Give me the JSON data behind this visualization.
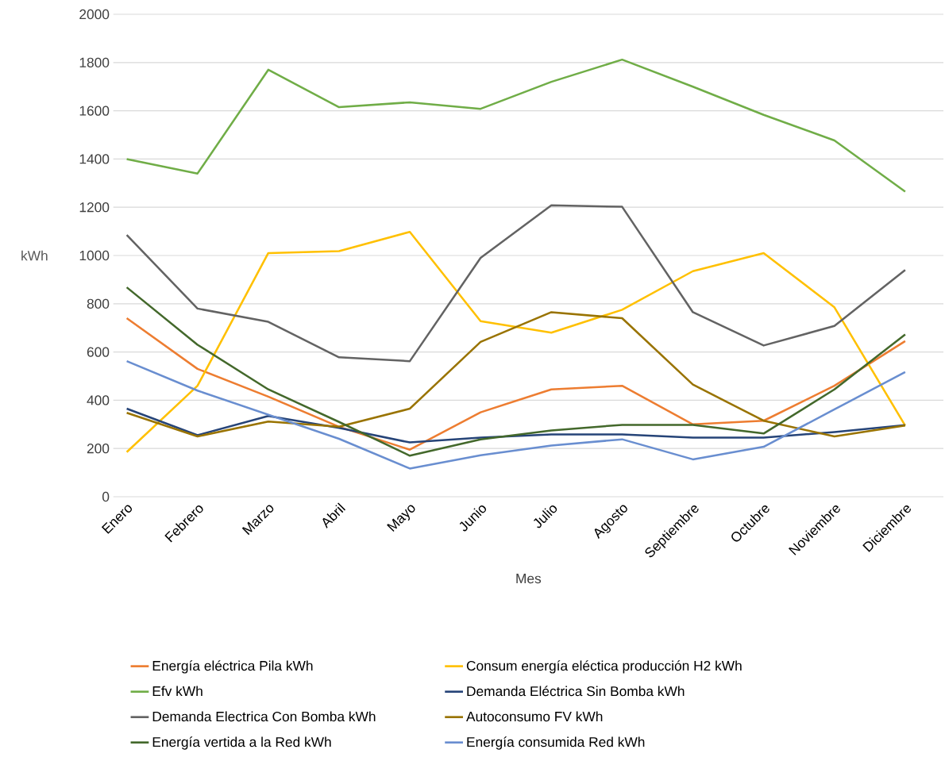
{
  "chart_data": {
    "type": "line",
    "xlabel": "Mes",
    "ylabel": "kWh",
    "categories": [
      "Enero",
      "Febrero",
      "Marzo",
      "Abril",
      "Mayo",
      "Junio",
      "Julio",
      "Agosto",
      "Septiembre",
      "Octubre",
      "Noviembre",
      "Diciembre"
    ],
    "series": [
      {
        "name": "Energía eléctrica Pila  kWh",
        "color": "#ed7d31",
        "values": [
          740,
          530,
          415,
          290,
          195,
          350,
          445,
          460,
          300,
          315,
          460,
          645
        ]
      },
      {
        "name": "Consum energía eléctica producción H2 kWh",
        "color": "#ffc000",
        "values": [
          185,
          460,
          1010,
          1018,
          1098,
          728,
          680,
          775,
          935,
          1010,
          785,
          295
        ]
      },
      {
        "name": "Efv kWh",
        "color": "#70ad47",
        "values": [
          1400,
          1340,
          1770,
          1615,
          1635,
          1608,
          1720,
          1812,
          1700,
          1583,
          1477,
          1265
        ]
      },
      {
        "name": "Demanda Eléctrica Sin Bomba kWh",
        "color": "#264478",
        "values": [
          365,
          255,
          335,
          285,
          225,
          245,
          258,
          258,
          245,
          245,
          268,
          297
        ]
      },
      {
        "name": "Demanda Electrica Con Bomba kWh",
        "color": "#636363",
        "values": [
          1085,
          780,
          725,
          578,
          562,
          990,
          1208,
          1202,
          765,
          627,
          708,
          940
        ]
      },
      {
        "name": "Autoconsumo FV kWh",
        "color": "#997300",
        "values": [
          348,
          250,
          312,
          290,
          365,
          642,
          765,
          740,
          465,
          315,
          250,
          295
        ]
      },
      {
        "name": "Energía vertida a la Red kWh",
        "color": "#43682b",
        "values": [
          868,
          630,
          445,
          310,
          170,
          238,
          275,
          298,
          298,
          262,
          445,
          673
        ]
      },
      {
        "name": "Energía consumida Red kWh",
        "color": "#698ed0",
        "values": [
          562,
          440,
          340,
          240,
          117,
          172,
          212,
          238,
          155,
          207,
          362,
          517
        ]
      }
    ],
    "ylim": [
      0,
      2000
    ],
    "yticks": [
      0,
      200,
      400,
      600,
      800,
      1000,
      1200,
      1400,
      1600,
      1800,
      2000
    ],
    "grid": "y",
    "legend": "bottom",
    "marker": "none",
    "line_style": "solid"
  }
}
